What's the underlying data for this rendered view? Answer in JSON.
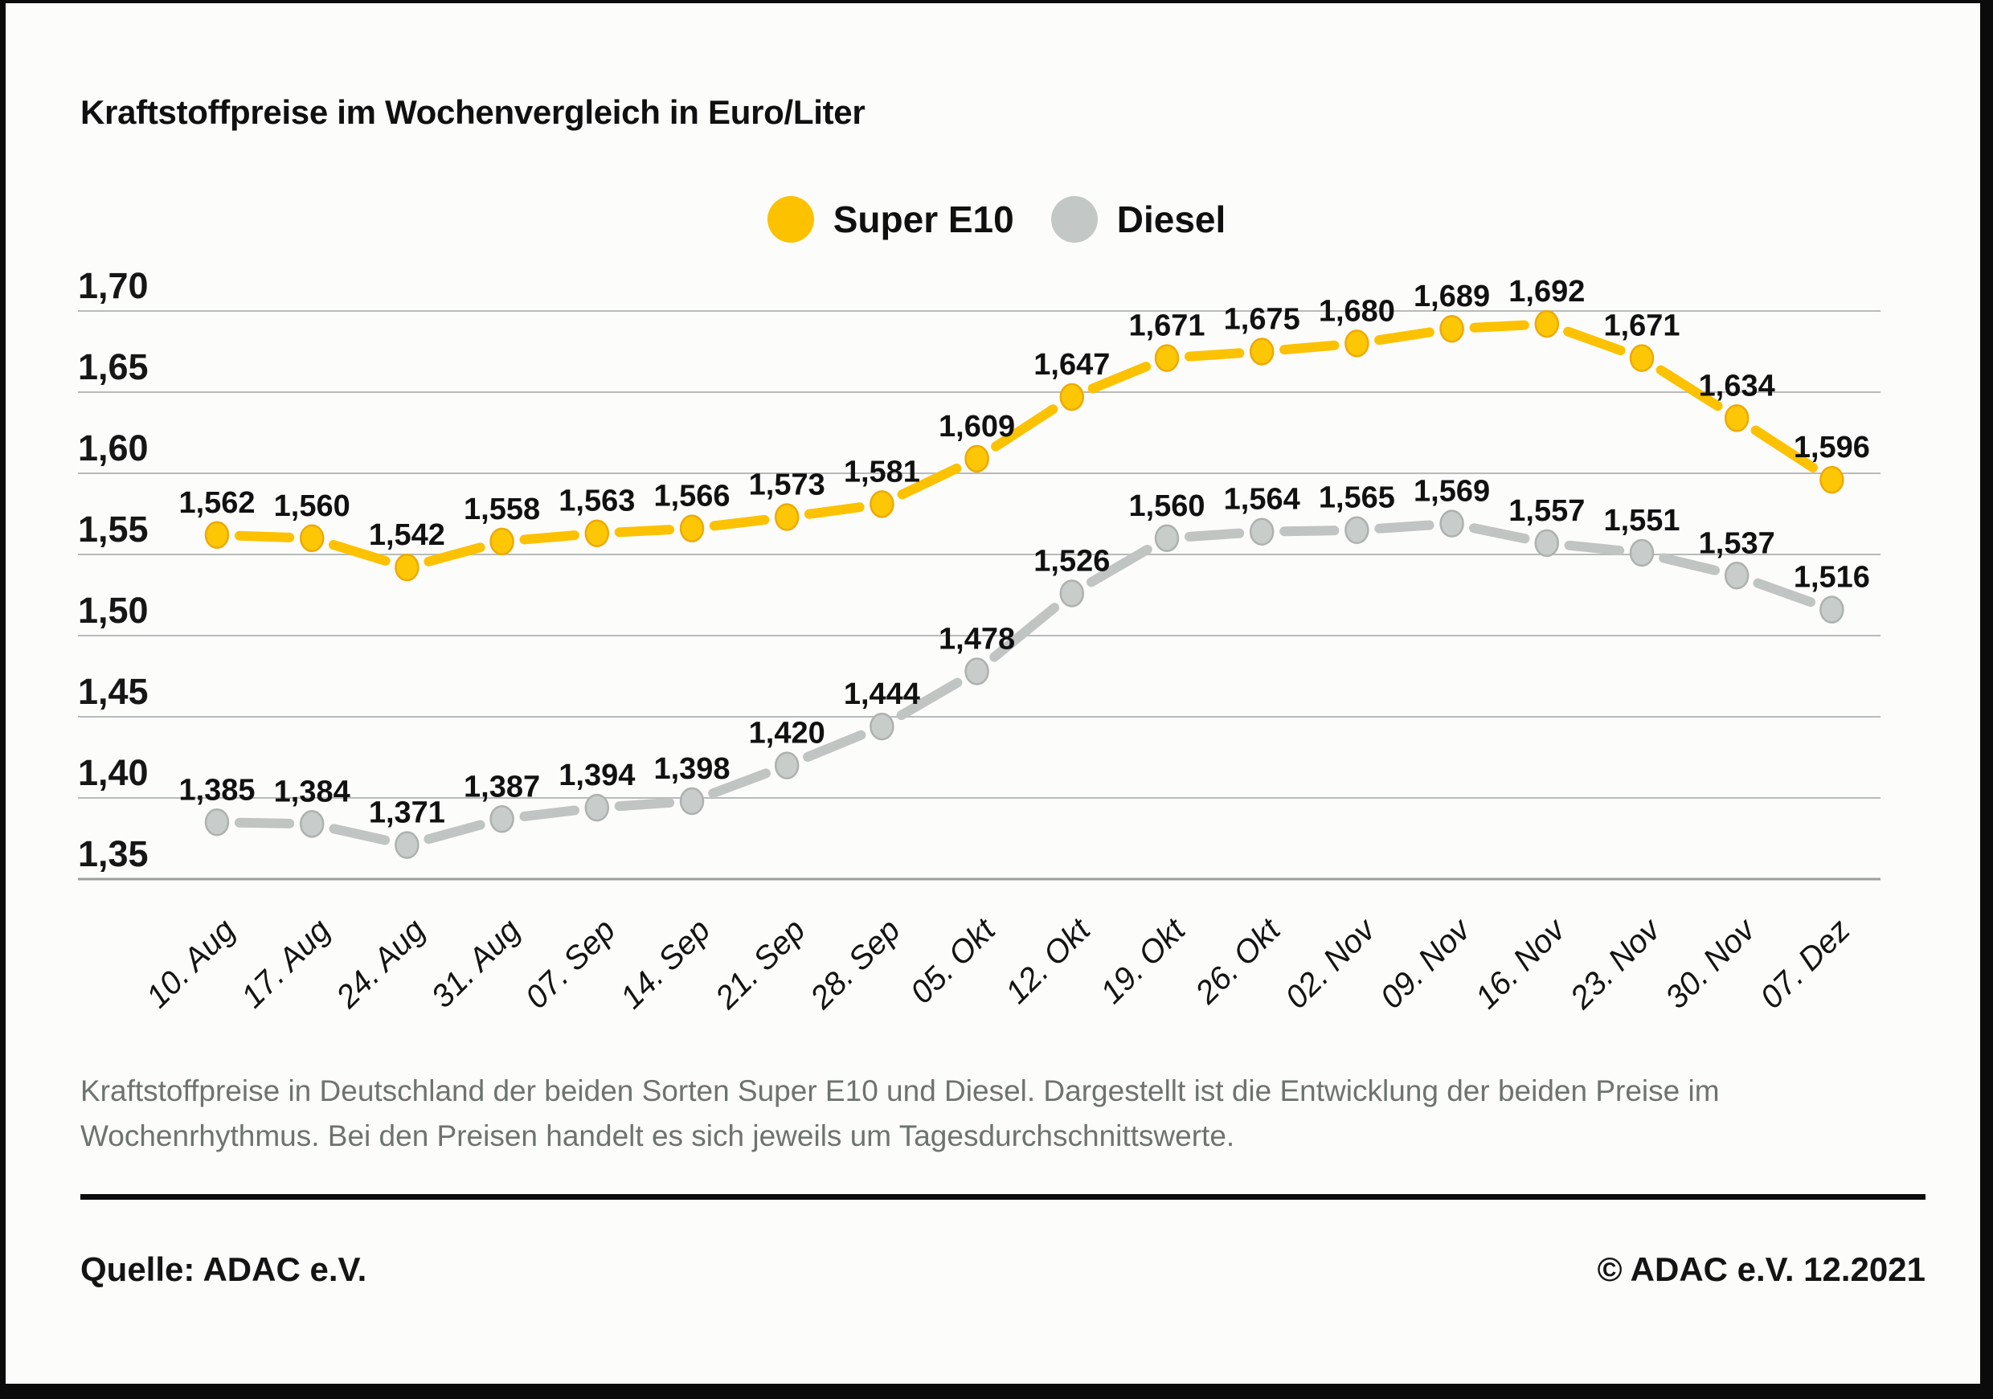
{
  "title": "Kraftstoffpreise im Wochenvergleich in Euro/Liter",
  "chart_data": {
    "type": "line",
    "title": "Kraftstoffpreise im Wochenvergleich in Euro/Liter",
    "categories": [
      "10. Aug",
      "17. Aug",
      "24. Aug",
      "31. Aug",
      "07. Sep",
      "14. Sep",
      "21. Sep",
      "28. Sep",
      "05. Okt",
      "12. Okt",
      "19. Okt",
      "26. Okt",
      "02. Nov",
      "09. Nov",
      "16. Nov",
      "23. Nov",
      "30. Nov",
      "07. Dez"
    ],
    "series": [
      {
        "name": "Super E10",
        "color": "#fcc200",
        "marker_fill": "#fdc705",
        "marker_stroke": "#edaa05",
        "values": [
          1.562,
          1.56,
          1.542,
          1.558,
          1.563,
          1.566,
          1.573,
          1.581,
          1.609,
          1.647,
          1.671,
          1.675,
          1.68,
          1.689,
          1.692,
          1.671,
          1.634,
          1.596
        ],
        "labels": [
          "1,562",
          "1,560",
          "1,542",
          "1,558",
          "1,563",
          "1,566",
          "1,573",
          "1,581",
          "1,609",
          "1,647",
          "1,671",
          "1,675",
          "1,680",
          "1,689",
          "1,692",
          "1,671",
          "1,634",
          "1,596"
        ]
      },
      {
        "name": "Diesel",
        "color": "#c0c4c2",
        "marker_fill": "#c8ccca",
        "marker_stroke": "#adb2af",
        "values": [
          1.385,
          1.384,
          1.371,
          1.387,
          1.394,
          1.398,
          1.42,
          1.444,
          1.478,
          1.526,
          1.56,
          1.564,
          1.565,
          1.569,
          1.557,
          1.551,
          1.537,
          1.516
        ],
        "labels": [
          "1,385",
          "1,384",
          "1,371",
          "1,387",
          "1,394",
          "1,398",
          "1,420",
          "1,444",
          "1,478",
          "1,526",
          "1,560",
          "1,564",
          "1,565",
          "1,569",
          "1,557",
          "1,551",
          "1,537",
          "1,516"
        ]
      }
    ],
    "yticks": [
      {
        "label": "1,70",
        "value": 1.7
      },
      {
        "label": "1,65",
        "value": 1.65
      },
      {
        "label": "1,60",
        "value": 1.6
      },
      {
        "label": "1,55",
        "value": 1.55
      },
      {
        "label": "1,50",
        "value": 1.5
      },
      {
        "label": "1,45",
        "value": 1.45
      },
      {
        "label": "1,40",
        "value": 1.4
      },
      {
        "label": "1,35",
        "value": 1.35
      }
    ],
    "ylim": [
      1.35,
      1.7
    ],
    "grid": true,
    "legend_position": "top-center",
    "x_label_rotation": -45,
    "legend": [
      {
        "label": "Super E10",
        "color": "#fcc200"
      },
      {
        "label": "Diesel",
        "color": "#c3c7c5"
      }
    ]
  },
  "caption": {
    "line1": "Kraftstoffpreise in Deutschland der beiden Sorten Super E10 und Diesel. Dargestellt ist die Entwicklung der beiden Preise im",
    "line2": "Wochenrhythmus. Bei den Preisen handelt es sich jeweils um Tagesdurchschnittswerte."
  },
  "footer": {
    "source": "Quelle: ADAC e.V.",
    "copyright": "© ADAC e.V. 12.2021"
  }
}
